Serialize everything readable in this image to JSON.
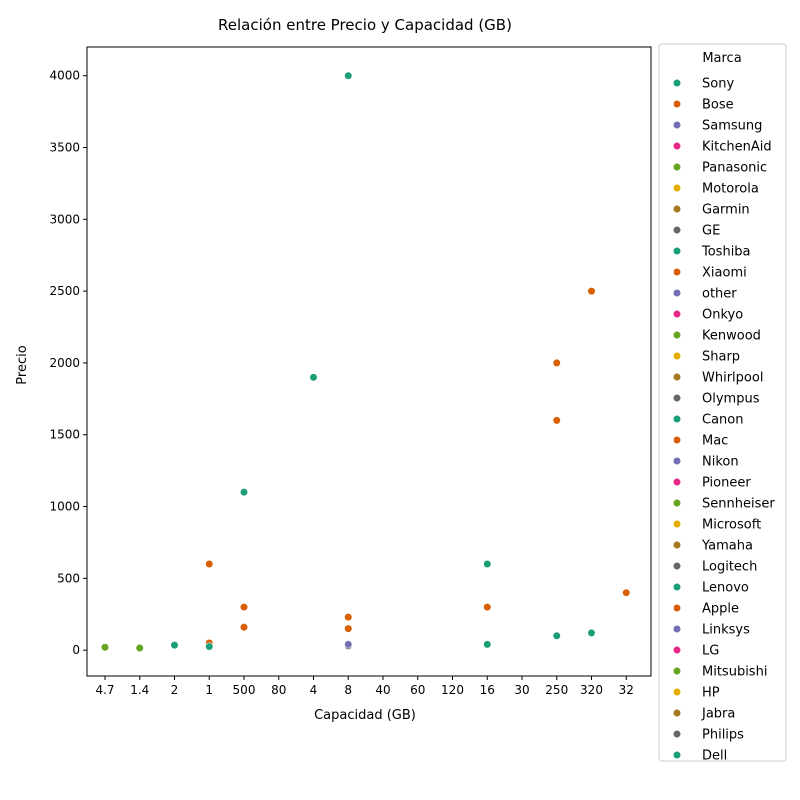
{
  "chart_data": {
    "type": "scatter",
    "title": "Relación entre Precio y Capacidad (GB)",
    "xlabel": "Capacidad (GB)",
    "ylabel": "Precio",
    "x_scale": "categorical",
    "categories": [
      "4.7",
      "1.4",
      "2",
      "1",
      "500",
      "80",
      "4",
      "8",
      "40",
      "60",
      "120",
      "16",
      "30",
      "250",
      "320",
      "32"
    ],
    "ylim": [
      -180,
      4200
    ],
    "yticks": [
      0,
      500,
      1000,
      1500,
      2000,
      2500,
      3000,
      3500,
      4000
    ],
    "grid": false,
    "legend": {
      "title": "Marca",
      "placement": "outside-right",
      "entries": [
        {
          "name": "Sony",
          "color": "#1b9e77"
        },
        {
          "name": "Bose",
          "color": "#d95f02"
        },
        {
          "name": "Samsung",
          "color": "#7570b3"
        },
        {
          "name": "KitchenAid",
          "color": "#e7298a"
        },
        {
          "name": "Panasonic",
          "color": "#66a61e"
        },
        {
          "name": "Motorola",
          "color": "#e6ab02"
        },
        {
          "name": "Garmin",
          "color": "#a6761d"
        },
        {
          "name": "GE",
          "color": "#666666"
        },
        {
          "name": "Toshiba",
          "color": "#1b9e77"
        },
        {
          "name": "Xiaomi",
          "color": "#d95f02"
        },
        {
          "name": "other",
          "color": "#7570b3"
        },
        {
          "name": "Onkyo",
          "color": "#e7298a"
        },
        {
          "name": "Kenwood",
          "color": "#66a61e"
        },
        {
          "name": "Sharp",
          "color": "#e6ab02"
        },
        {
          "name": "Whirlpool",
          "color": "#a6761d"
        },
        {
          "name": "Olympus",
          "color": "#666666"
        },
        {
          "name": "Canon",
          "color": "#1b9e77"
        },
        {
          "name": "Mac",
          "color": "#d95f02"
        },
        {
          "name": "Nikon",
          "color": "#7570b3"
        },
        {
          "name": "Pioneer",
          "color": "#e7298a"
        },
        {
          "name": "Sennheiser",
          "color": "#66a61e"
        },
        {
          "name": "Microsoft",
          "color": "#e6ab02"
        },
        {
          "name": "Yamaha",
          "color": "#a6761d"
        },
        {
          "name": "Logitech",
          "color": "#666666"
        },
        {
          "name": "Lenovo",
          "color": "#1b9e77"
        },
        {
          "name": "Apple",
          "color": "#d95f02"
        },
        {
          "name": "Linksys",
          "color": "#7570b3"
        },
        {
          "name": "LG",
          "color": "#e7298a"
        },
        {
          "name": "Mitsubishi",
          "color": "#66a61e"
        },
        {
          "name": "HP",
          "color": "#e6ab02"
        },
        {
          "name": "Jabra",
          "color": "#a6761d"
        },
        {
          "name": "Philips",
          "color": "#666666"
        },
        {
          "name": "Dell",
          "color": "#1b9e77"
        }
      ]
    },
    "points": [
      {
        "x": "4.7",
        "y": 20,
        "color": "#66a61e"
      },
      {
        "x": "1.4",
        "y": 15,
        "color": "#66a61e"
      },
      {
        "x": "2",
        "y": 35,
        "color": "#1b9e77"
      },
      {
        "x": "1",
        "y": 600,
        "color": "#d95f02"
      },
      {
        "x": "1",
        "y": 50,
        "color": "#d95f02"
      },
      {
        "x": "1",
        "y": 25,
        "color": "#1b9e77"
      },
      {
        "x": "500",
        "y": 1100,
        "color": "#1b9e77"
      },
      {
        "x": "500",
        "y": 300,
        "color": "#d95f02"
      },
      {
        "x": "500",
        "y": 160,
        "color": "#d95f02"
      },
      {
        "x": "4",
        "y": 1900,
        "color": "#1b9e77"
      },
      {
        "x": "8",
        "y": 4000,
        "color": "#1b9e77"
      },
      {
        "x": "8",
        "y": 230,
        "color": "#d95f02"
      },
      {
        "x": "8",
        "y": 150,
        "color": "#d95f02"
      },
      {
        "x": "8",
        "y": 30,
        "color": "#666666"
      },
      {
        "x": "8",
        "y": 40,
        "color": "#7570b3"
      },
      {
        "x": "16",
        "y": 600,
        "color": "#1b9e77"
      },
      {
        "x": "16",
        "y": 300,
        "color": "#d95f02"
      },
      {
        "x": "16",
        "y": 40,
        "color": "#1b9e77"
      },
      {
        "x": "250",
        "y": 2000,
        "color": "#d95f02"
      },
      {
        "x": "250",
        "y": 1600,
        "color": "#d95f02"
      },
      {
        "x": "250",
        "y": 100,
        "color": "#1b9e77"
      },
      {
        "x": "320",
        "y": 2500,
        "color": "#d95f02"
      },
      {
        "x": "320",
        "y": 120,
        "color": "#1b9e77"
      },
      {
        "x": "32",
        "y": 400,
        "color": "#d95f02"
      }
    ]
  }
}
